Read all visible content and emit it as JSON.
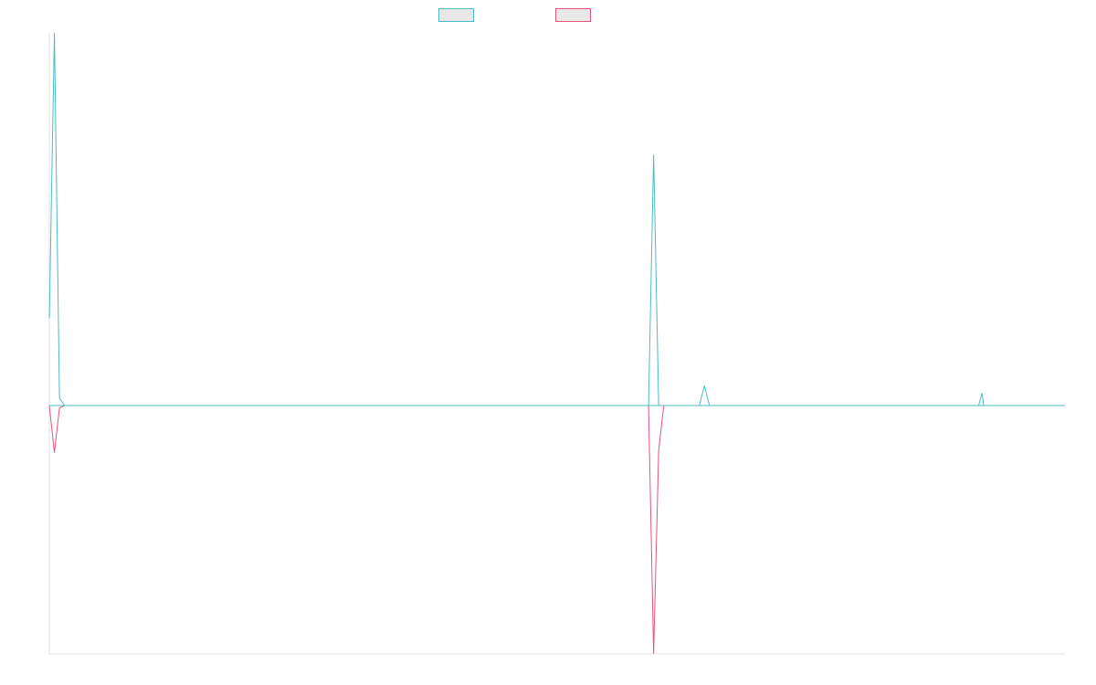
{
  "chart_data": {
    "type": "line",
    "title": "",
    "xlabel": "",
    "ylabel": "",
    "grid": false,
    "legend_position": "top-center",
    "x": [
      0,
      3,
      6,
      9,
      12,
      15,
      18,
      21,
      24,
      27,
      30,
      33,
      36,
      39,
      42,
      45,
      48,
      51,
      54,
      57,
      60,
      63,
      66,
      69,
      72,
      75,
      78,
      81,
      84,
      87,
      90,
      93,
      96,
      99,
      102,
      105,
      108,
      111,
      114,
      117,
      120,
      123,
      126,
      129,
      132,
      135,
      138,
      141,
      144,
      147,
      150,
      153,
      156,
      159,
      162,
      165,
      168,
      171,
      174,
      177,
      180,
      183,
      186,
      189,
      192,
      195,
      198,
      201,
      204,
      207,
      210,
      213,
      216,
      219,
      222,
      225,
      228,
      231,
      234,
      237,
      240,
      243,
      246,
      249,
      252,
      255,
      258,
      261,
      264,
      267,
      270,
      273,
      276,
      279,
      282,
      285,
      288,
      291,
      294,
      297,
      300,
      303,
      306,
      309,
      312,
      315,
      318,
      321,
      324,
      327,
      330,
      333,
      336,
      339,
      342,
      345,
      348,
      351,
      354,
      357,
      360,
      363,
      366,
      369,
      372,
      375,
      378,
      381,
      384,
      387,
      390,
      393,
      396,
      399,
      402,
      405,
      408,
      411,
      414,
      417,
      420,
      423,
      426,
      429,
      432,
      435,
      438,
      441,
      444,
      447,
      450,
      453,
      456,
      459,
      462,
      465,
      468,
      471,
      474,
      477,
      480,
      483,
      486,
      489,
      492,
      495,
      498,
      501,
      504,
      507,
      510,
      513,
      516,
      519,
      522,
      525,
      528,
      531,
      534,
      537,
      540,
      543,
      546,
      549,
      552,
      555,
      558,
      561,
      564,
      567,
      570,
      573,
      576,
      579,
      582,
      585,
      588,
      591,
      594,
      597,
      600
    ],
    "series": [
      {
        "color": "#4bbcc4",
        "values": [
          35,
          150,
          3,
          0,
          0,
          0,
          0,
          0,
          0,
          0,
          0,
          0,
          0,
          0,
          0,
          0,
          0,
          0,
          0,
          0,
          0,
          0,
          0,
          0,
          0,
          0,
          0,
          0,
          0,
          0,
          0,
          0,
          0,
          0,
          0,
          0,
          0,
          0,
          0,
          0,
          0,
          0,
          0,
          0,
          0,
          0,
          0,
          0,
          0,
          0,
          0,
          0,
          0,
          0,
          0,
          0,
          0,
          0,
          0,
          0,
          0,
          0,
          0,
          0,
          0,
          0,
          0,
          0,
          0,
          0,
          0,
          0,
          0,
          0,
          0,
          0,
          0,
          0,
          0,
          0,
          0,
          0,
          0,
          0,
          0,
          0,
          0,
          0,
          0,
          0,
          0,
          0,
          0,
          0,
          0,
          0,
          0,
          0,
          0,
          0,
          0,
          0,
          0,
          0,
          0,
          0,
          0,
          0,
          0,
          0,
          0,
          0,
          0,
          0,
          0,
          0,
          0,
          0,
          0,
          0,
          0,
          0,
          0,
          0,
          0,
          0,
          0,
          0,
          0,
          0,
          0,
          0,
          0,
          0,
          0,
          0,
          0,
          0,
          0,
          0,
          0,
          0,
          0,
          0,
          0,
          0,
          0,
          0,
          0,
          0,
          0,
          0,
          0,
          0,
          0,
          0,
          0,
          0,
          0,
          0,
          0,
          0,
          0,
          0,
          0,
          0,
          0,
          0,
          0,
          0,
          0,
          0,
          0,
          0,
          0,
          0,
          0,
          0,
          0,
          0,
          0,
          0,
          0,
          0,
          0,
          0,
          0,
          0,
          0,
          0,
          0,
          0,
          0,
          0,
          0,
          0,
          0,
          0,
          0,
          0,
          0
        ]
      },
      {
        "color": "#e8547a",
        "values": [
          0,
          -19,
          -1,
          0,
          0,
          0,
          0,
          0,
          0,
          0,
          0,
          0,
          0,
          0,
          0,
          0,
          0,
          0,
          0,
          0,
          0,
          0,
          0,
          0,
          0,
          0,
          0,
          0,
          0,
          0,
          0,
          0,
          0,
          0,
          0,
          0,
          0,
          0,
          0,
          0,
          0,
          0,
          0,
          0,
          0,
          0,
          0,
          0,
          0,
          0,
          0,
          0,
          0,
          0,
          0,
          0,
          0,
          0,
          0,
          0,
          0,
          0,
          0,
          0,
          0,
          0,
          0,
          0,
          0,
          0,
          0,
          0,
          0,
          0,
          0,
          0,
          0,
          0,
          0,
          0,
          0,
          0,
          0,
          0,
          0,
          0,
          0,
          0,
          0,
          0,
          0,
          0,
          0,
          0,
          0,
          0,
          0,
          0,
          0,
          0,
          0,
          0,
          0,
          0,
          0,
          0,
          0,
          0,
          0,
          0,
          0,
          0,
          0,
          0,
          0,
          0,
          0,
          0,
          0,
          0,
          0,
          0,
          0,
          0,
          0,
          0,
          0,
          0,
          0,
          0,
          0,
          0,
          0,
          0,
          0,
          0,
          0,
          0,
          0,
          0,
          0,
          0,
          0,
          0,
          0,
          0,
          0,
          0,
          0,
          0,
          0,
          0,
          0,
          0,
          0,
          0,
          0,
          0,
          0,
          0,
          0,
          0,
          0,
          0,
          0,
          0,
          0,
          0,
          0,
          0,
          0,
          0,
          0,
          0,
          0,
          0,
          0,
          0,
          0,
          0,
          0,
          0,
          0,
          0,
          0,
          0,
          0,
          0,
          0,
          0,
          0,
          0,
          0,
          0,
          0,
          0,
          0,
          0,
          0,
          0,
          0
        ]
      }
    ],
    "spikes": [
      {
        "x": 357,
        "up": 101,
        "down": -100
      },
      {
        "x": 360,
        "up": 0,
        "down": -18
      },
      {
        "x": 387,
        "up": 8,
        "down": 0
      },
      {
        "x": 551,
        "up": 5,
        "down": 0
      }
    ],
    "ylim": [
      -100,
      150
    ],
    "xlim": [
      0,
      600
    ]
  },
  "legend": {
    "labels": [
      "",
      ""
    ]
  }
}
